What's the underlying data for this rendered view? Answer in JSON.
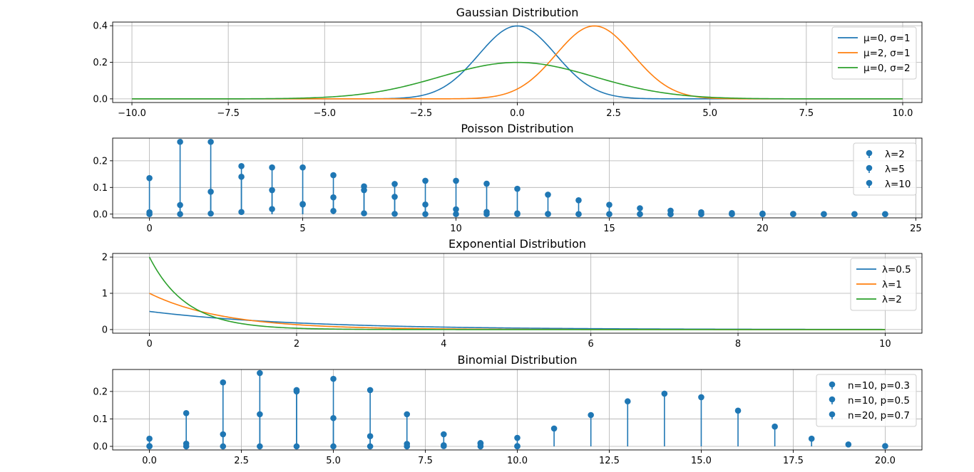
{
  "chart_data": [
    {
      "type": "line",
      "title": "Gaussian Distribution",
      "xlabel": "",
      "ylabel": "",
      "xlim": [
        -10.5,
        10.5
      ],
      "ylim": [
        -0.02,
        0.42
      ],
      "xticks": [
        -10.0,
        -7.5,
        -5.0,
        -2.5,
        0.0,
        2.5,
        5.0,
        7.5,
        10.0
      ],
      "xtick_labels": [
        "−10.0",
        "−7.5",
        "−5.0",
        "−2.5",
        "0.0",
        "2.5",
        "5.0",
        "7.5",
        "10.0"
      ],
      "yticks": [
        0.0,
        0.2,
        0.4
      ],
      "ytick_labels": [
        "0.0",
        "0.2",
        "0.4"
      ],
      "grid": true,
      "legend_position": "top-right",
      "x_range": [
        -10,
        10
      ],
      "series": [
        {
          "name": "μ=0, σ=1",
          "dist": "gaussian",
          "mu": 0,
          "sigma": 1,
          "color": "#1f77b4"
        },
        {
          "name": "μ=2, σ=1",
          "dist": "gaussian",
          "mu": 2,
          "sigma": 1,
          "color": "#ff7f0e"
        },
        {
          "name": "μ=0, σ=2",
          "dist": "gaussian",
          "mu": 0,
          "sigma": 2,
          "color": "#2ca02c"
        }
      ]
    },
    {
      "type": "stem",
      "title": "Poisson Distribution",
      "xlabel": "",
      "ylabel": "",
      "xlim": [
        -1.2,
        25.2
      ],
      "ylim": [
        -0.014,
        0.285
      ],
      "xticks": [
        0,
        5,
        10,
        15,
        20,
        25
      ],
      "xtick_labels": [
        "0",
        "5",
        "10",
        "15",
        "20",
        "25"
      ],
      "yticks": [
        0.0,
        0.1,
        0.2
      ],
      "ytick_labels": [
        "0.0",
        "0.1",
        "0.2"
      ],
      "grid": true,
      "legend_position": "top-right",
      "x": [
        0,
        1,
        2,
        3,
        4,
        5,
        6,
        7,
        8,
        9,
        10,
        11,
        12,
        13,
        14,
        15,
        16,
        17,
        18,
        19,
        20,
        21,
        22,
        23,
        24
      ],
      "series": [
        {
          "name": "λ=2",
          "color": "#1f77b4",
          "values": [
            0.135,
            0.271,
            0.271,
            0.18,
            0.09,
            0.036,
            0.012,
            0.003,
            0.001,
            0.0,
            0.0,
            0.0,
            0.0,
            0.0,
            0.0,
            0.0,
            0.0,
            0.0,
            0.0,
            0.0,
            0.0,
            0.0,
            0.0,
            0.0,
            0.0
          ]
        },
        {
          "name": "λ=5",
          "color": "#1f77b4",
          "values": [
            0.007,
            0.034,
            0.084,
            0.14,
            0.175,
            0.175,
            0.146,
            0.104,
            0.065,
            0.036,
            0.018,
            0.008,
            0.003,
            0.001,
            0.0,
            0.0,
            0.0,
            0.0,
            0.0,
            0.0,
            0.0,
            0.0,
            0.0,
            0.0,
            0.0
          ]
        },
        {
          "name": "λ=10",
          "color": "#1f77b4",
          "values": [
            0.0,
            0.0,
            0.002,
            0.008,
            0.019,
            0.038,
            0.063,
            0.09,
            0.113,
            0.125,
            0.125,
            0.114,
            0.095,
            0.073,
            0.052,
            0.035,
            0.022,
            0.013,
            0.007,
            0.004,
            0.002,
            0.001,
            0.0,
            0.0,
            0.0
          ]
        }
      ]
    },
    {
      "type": "line",
      "title": "Exponential Distribution",
      "xlabel": "",
      "ylabel": "",
      "xlim": [
        -0.5,
        10.5
      ],
      "ylim": [
        -0.1,
        2.1
      ],
      "xticks": [
        0,
        2,
        4,
        6,
        8,
        10
      ],
      "xtick_labels": [
        "0",
        "2",
        "4",
        "6",
        "8",
        "10"
      ],
      "yticks": [
        0,
        1,
        2
      ],
      "ytick_labels": [
        "0",
        "1",
        "2"
      ],
      "grid": true,
      "legend_position": "top-right",
      "x_range": [
        0,
        10
      ],
      "series": [
        {
          "name": "λ=0.5",
          "dist": "exponential",
          "lambda": 0.5,
          "color": "#1f77b4"
        },
        {
          "name": "λ=1",
          "dist": "exponential",
          "lambda": 1,
          "color": "#ff7f0e"
        },
        {
          "name": "λ=2",
          "dist": "exponential",
          "lambda": 2,
          "color": "#2ca02c"
        }
      ]
    },
    {
      "type": "stem",
      "title": "Binomial Distribution",
      "xlabel": "",
      "ylabel": "",
      "xlim": [
        -1.0,
        21.0
      ],
      "ylim": [
        -0.013,
        0.28
      ],
      "xticks": [
        0.0,
        2.5,
        5.0,
        7.5,
        10.0,
        12.5,
        15.0,
        17.5,
        20.0
      ],
      "xtick_labels": [
        "0.0",
        "2.5",
        "5.0",
        "7.5",
        "10.0",
        "12.5",
        "15.0",
        "17.5",
        "20.0"
      ],
      "yticks": [
        0.0,
        0.1,
        0.2
      ],
      "ytick_labels": [
        "0.0",
        "0.1",
        "0.2"
      ],
      "grid": true,
      "legend_position": "top-right",
      "series": [
        {
          "name": "n=10, p=0.3",
          "color": "#1f77b4",
          "x": [
            0,
            1,
            2,
            3,
            4,
            5,
            6,
            7,
            8,
            9,
            10
          ],
          "values": [
            0.028,
            0.121,
            0.233,
            0.267,
            0.2,
            0.103,
            0.037,
            0.009,
            0.001,
            0.0,
            0.0
          ]
        },
        {
          "name": "n=10, p=0.5",
          "color": "#1f77b4",
          "x": [
            0,
            1,
            2,
            3,
            4,
            5,
            6,
            7,
            8,
            9,
            10
          ],
          "values": [
            0.001,
            0.01,
            0.044,
            0.117,
            0.205,
            0.246,
            0.205,
            0.117,
            0.044,
            0.01,
            0.001
          ]
        },
        {
          "name": "n=20, p=0.7",
          "color": "#1f77b4",
          "x": [
            0,
            1,
            2,
            3,
            4,
            5,
            6,
            7,
            8,
            9,
            10,
            11,
            12,
            13,
            14,
            15,
            16,
            17,
            18,
            19,
            20
          ],
          "values": [
            0.0,
            0.0,
            0.0,
            0.0,
            0.0,
            0.0,
            0.0,
            0.0,
            0.004,
            0.012,
            0.031,
            0.065,
            0.114,
            0.164,
            0.192,
            0.179,
            0.13,
            0.072,
            0.028,
            0.007,
            0.001
          ]
        }
      ]
    }
  ]
}
